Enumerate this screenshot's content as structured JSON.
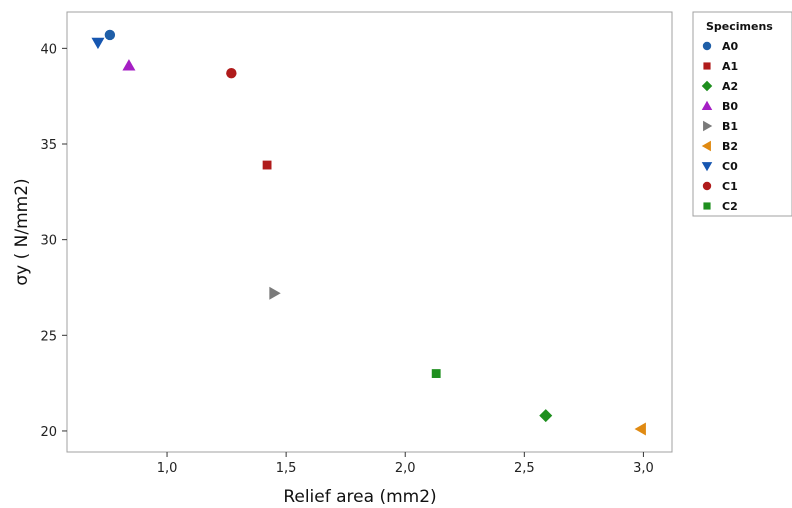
{
  "chart_data": {
    "type": "scatter",
    "title": "",
    "xlabel": "Relief area (mm2)",
    "ylabel": "σy ( N/mm2)",
    "xlim": [
      0.58,
      3.12
    ],
    "ylim": [
      18.9,
      41.9
    ],
    "xticks": [
      1.0,
      1.5,
      2.0,
      2.5,
      3.0
    ],
    "xtick_labels": [
      "1,0",
      "1,5",
      "2,0",
      "2,5",
      "3,0"
    ],
    "yticks": [
      20,
      25,
      30,
      35,
      40
    ],
    "ytick_labels": [
      "20",
      "25",
      "30",
      "35",
      "40"
    ],
    "grid": false,
    "legend": {
      "title": "Specimens",
      "placement": "right"
    },
    "series": [
      {
        "name": "A0",
        "marker": "circle",
        "color": "#1f5fa8",
        "points": [
          {
            "x": 0.76,
            "y": 40.7
          }
        ]
      },
      {
        "name": "A1",
        "marker": "square",
        "color": "#b01b1b",
        "points": [
          {
            "x": 1.42,
            "y": 33.9
          }
        ]
      },
      {
        "name": "A2",
        "marker": "diamond",
        "color": "#1e8f1e",
        "points": [
          {
            "x": 2.59,
            "y": 20.8
          }
        ]
      },
      {
        "name": "B0",
        "marker": "triangle-up",
        "color": "#a51fc4",
        "points": [
          {
            "x": 0.84,
            "y": 39.1
          }
        ]
      },
      {
        "name": "B1",
        "marker": "triangle-right",
        "color": "#7a7a7a",
        "points": [
          {
            "x": 1.45,
            "y": 27.2
          }
        ]
      },
      {
        "name": "B2",
        "marker": "triangle-left",
        "color": "#e08a12",
        "points": [
          {
            "x": 2.99,
            "y": 20.1
          }
        ]
      },
      {
        "name": "C0",
        "marker": "triangle-down",
        "color": "#1656b0",
        "points": [
          {
            "x": 0.71,
            "y": 40.3
          }
        ]
      },
      {
        "name": "C1",
        "marker": "circle",
        "color": "#b01b1b",
        "points": [
          {
            "x": 1.27,
            "y": 38.7
          }
        ]
      },
      {
        "name": "C2",
        "marker": "square",
        "color": "#1e8f1e",
        "points": [
          {
            "x": 2.13,
            "y": 23.0
          }
        ]
      }
    ]
  }
}
